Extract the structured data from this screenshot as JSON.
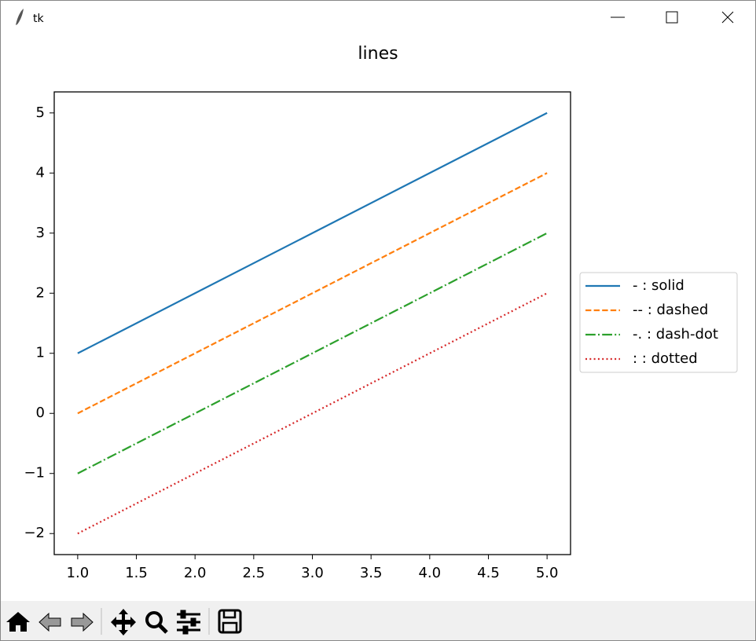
{
  "window": {
    "title": "tk"
  },
  "chart_data": {
    "type": "line",
    "title": "lines",
    "x": [
      1,
      2,
      3,
      4,
      5
    ],
    "series": [
      {
        "name": "- : solid",
        "color": "#1f77b4",
        "linestyle": "solid",
        "values": [
          1,
          2,
          3,
          4,
          5
        ]
      },
      {
        "name": "-- : dashed",
        "color": "#ff7f0e",
        "linestyle": "dashed",
        "values": [
          0,
          1,
          2,
          3,
          4
        ]
      },
      {
        "name": "-. : dash-dot",
        "color": "#2ca02c",
        "linestyle": "dashdot",
        "values": [
          -1,
          0,
          1,
          2,
          3
        ]
      },
      {
        "name": ": : dotted",
        "color": "#d62728",
        "linestyle": "dotted",
        "values": [
          -2,
          -1,
          0,
          1,
          2
        ]
      }
    ],
    "xlim": [
      0.8,
      5.2
    ],
    "xticks": [
      {
        "value": 1,
        "label": "1.0"
      },
      {
        "value": 1.5,
        "label": "1.5"
      },
      {
        "value": 2,
        "label": "2.0"
      },
      {
        "value": 2.5,
        "label": "2.5"
      },
      {
        "value": 3,
        "label": "3.0"
      },
      {
        "value": 3.5,
        "label": "3.5"
      },
      {
        "value": 4,
        "label": "4.0"
      },
      {
        "value": 4.5,
        "label": "4.5"
      },
      {
        "value": 5,
        "label": "5.0"
      }
    ],
    "ylim": [
      -2.35,
      5.35
    ],
    "yticks": [
      {
        "value": -2,
        "label": "−2"
      },
      {
        "value": -1,
        "label": "−1"
      },
      0,
      1,
      2,
      3,
      4,
      5
    ],
    "grid": false,
    "legend": "right"
  }
}
